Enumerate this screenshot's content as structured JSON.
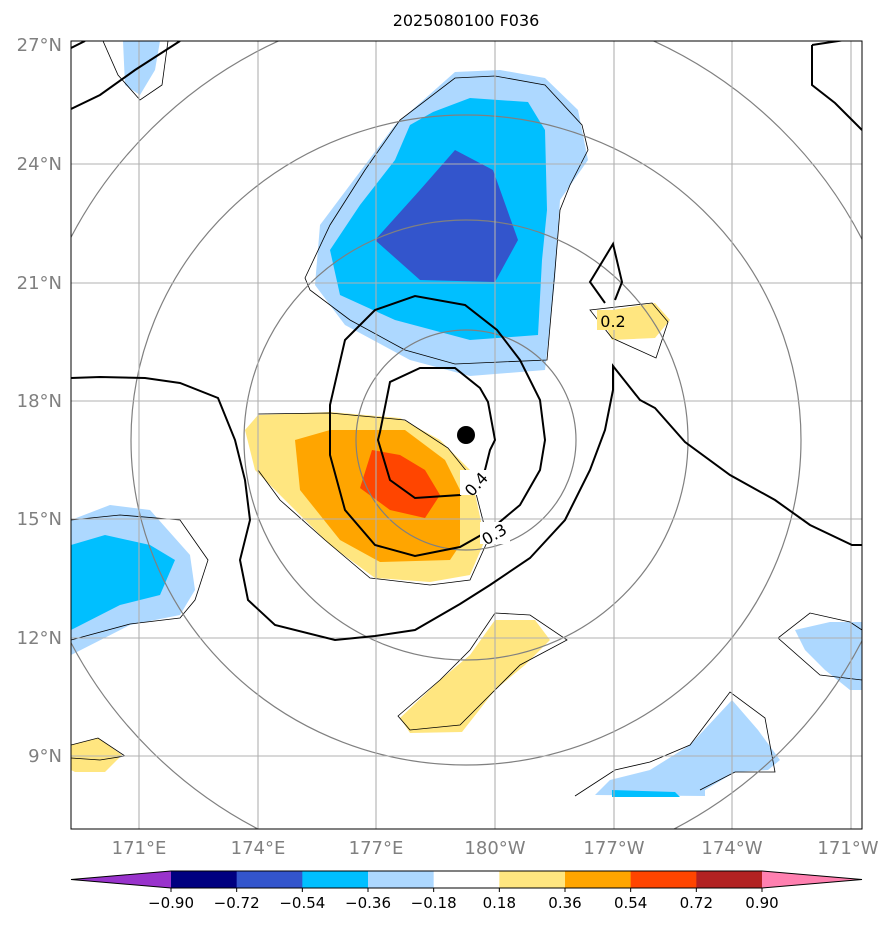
{
  "title": "2025080100 F036",
  "map": {
    "lat_labels": [
      "27°N",
      "24°N",
      "21°N",
      "18°N",
      "15°N",
      "12°N",
      "9°N"
    ],
    "lon_labels": [
      "171°E",
      "174°E",
      "177°E",
      "180°W",
      "177°W",
      "174°W",
      "171°W"
    ],
    "contour_labels": [
      "0.2",
      "0.3",
      "0.4"
    ],
    "storm_center": {
      "lat": 17.1,
      "lon": 179.8
    },
    "tick_color": "#808080",
    "circle_color": "#808080"
  },
  "colorbar": {
    "tick_labels": [
      "−0.90",
      "−0.72",
      "−0.54",
      "−0.36",
      "−0.18",
      "0.18",
      "0.36",
      "0.54",
      "0.72",
      "0.90"
    ],
    "colors": [
      "#9933cc",
      "#000080",
      "#3355cc",
      "#00bfff",
      "#add8ff",
      "#ffffff",
      "#ffe680",
      "#ffa500",
      "#ff4500",
      "#b22222",
      "#ff80b0"
    ]
  }
}
